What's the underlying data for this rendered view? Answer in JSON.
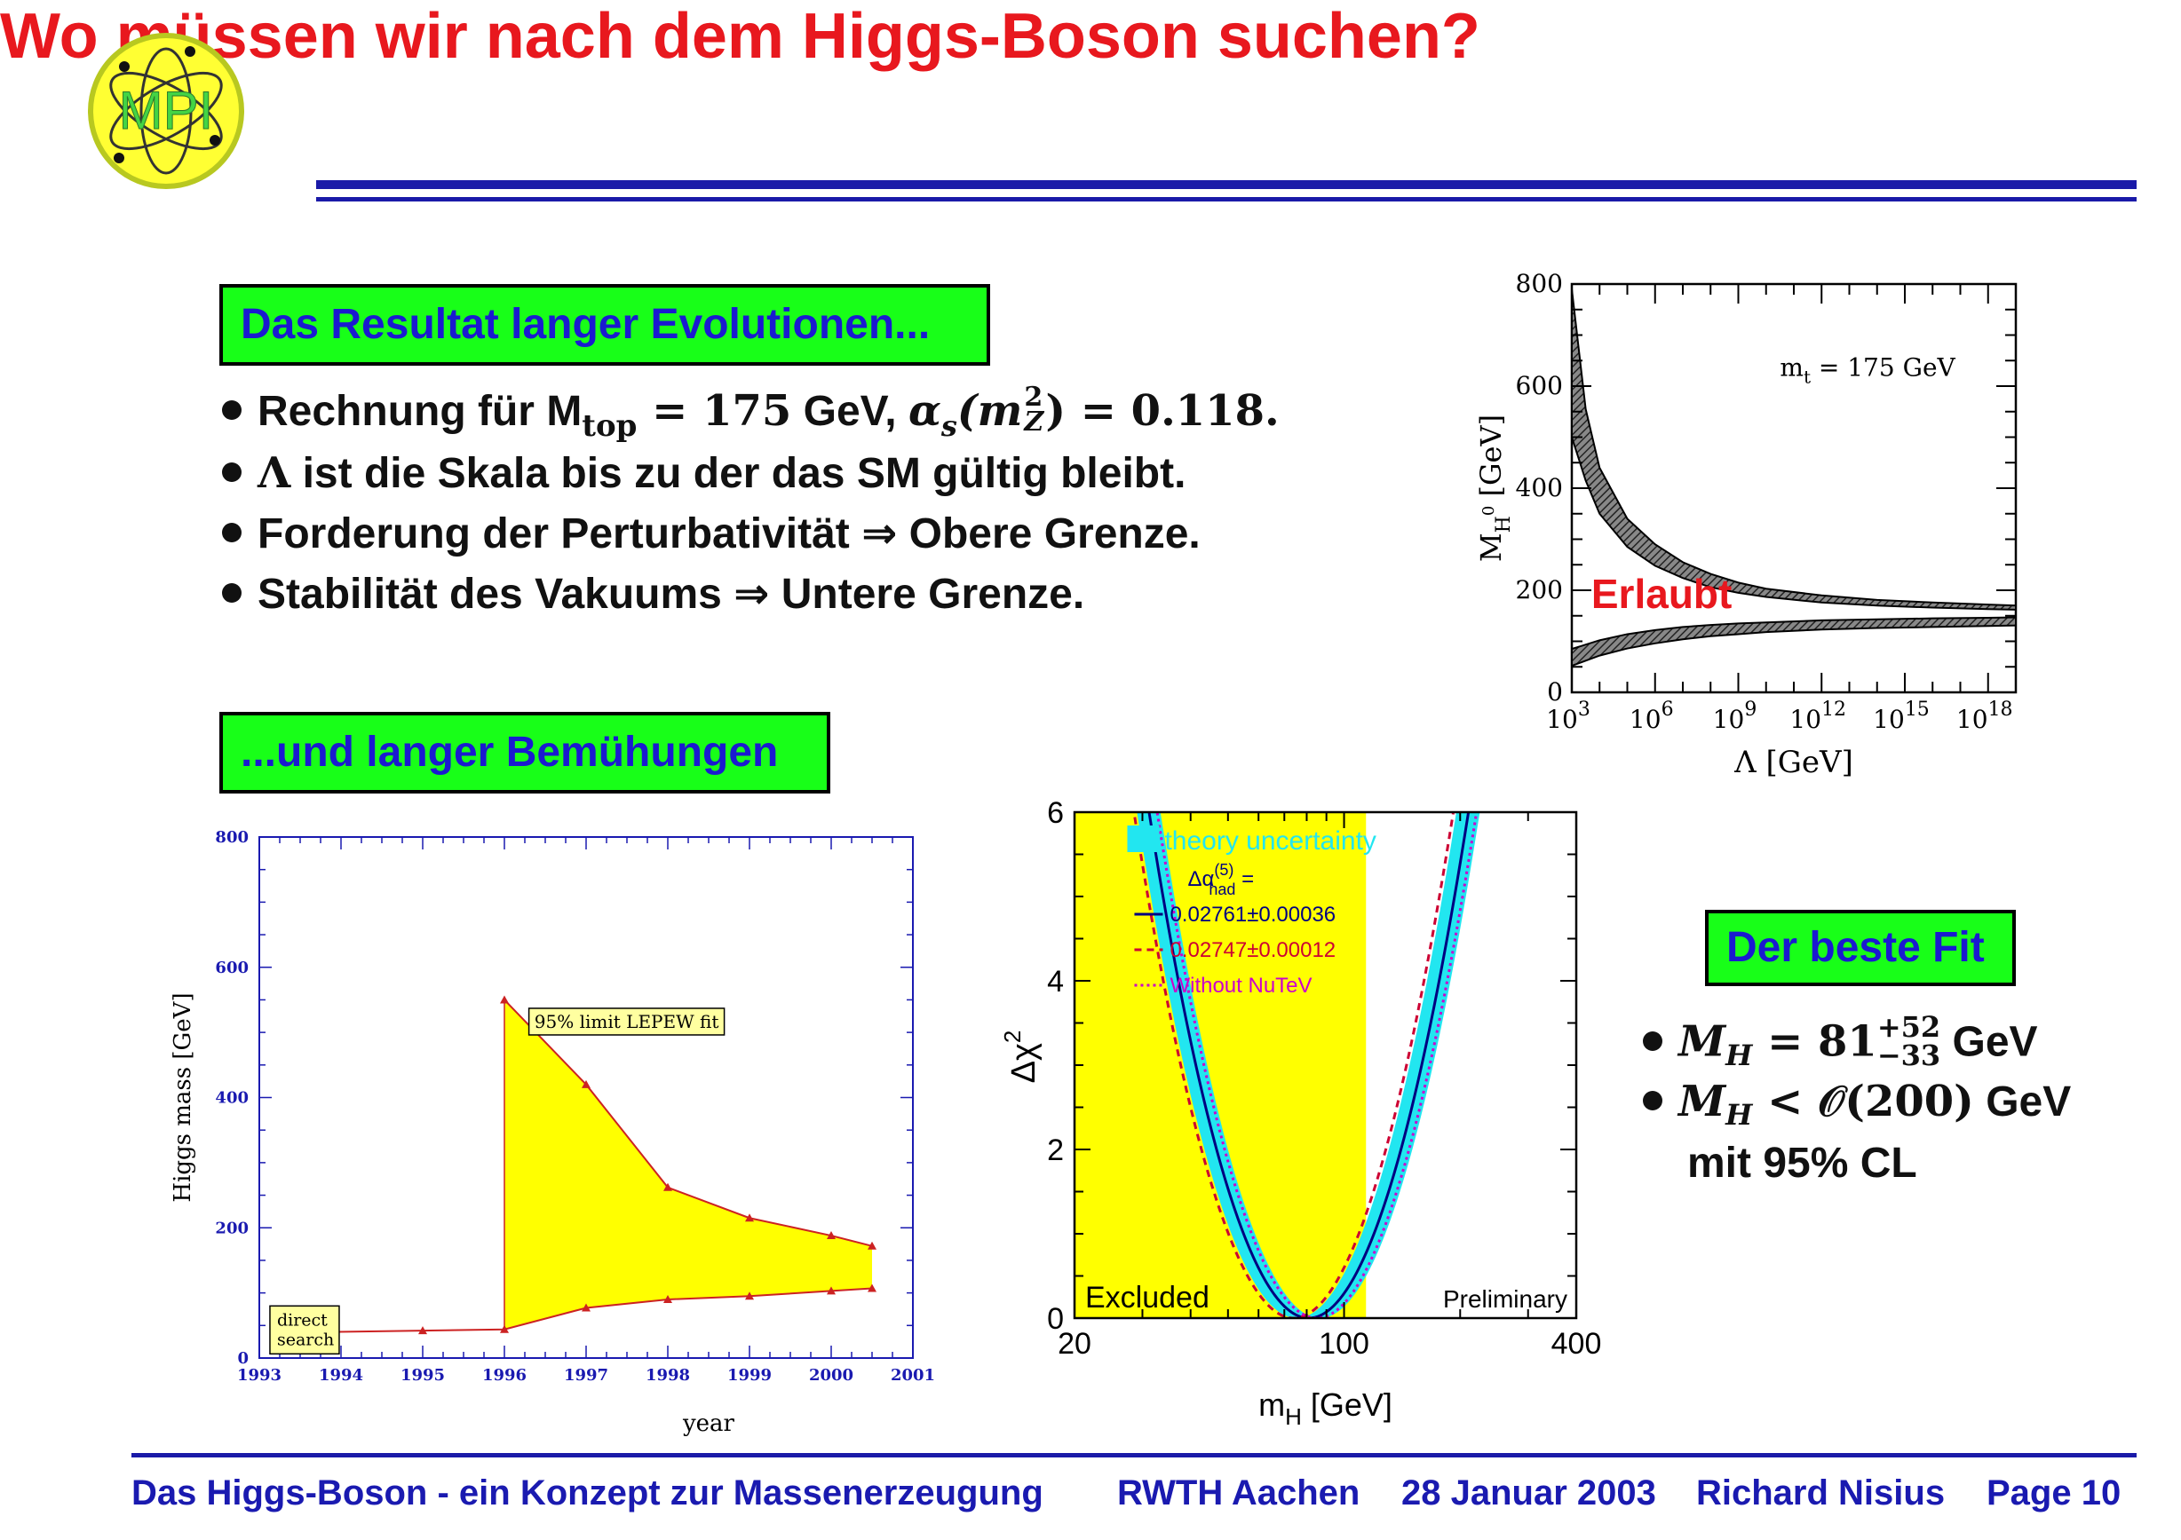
{
  "slide": {
    "title": "Wo müssen wir nach dem Higgs-Boson suchen?",
    "logo_text": "MPI",
    "colors": {
      "title": "#e8181e",
      "rule": "#1a1aa8",
      "box_bg": "#18ff18",
      "box_text": "#1a1ad0"
    }
  },
  "section1": {
    "heading": "Das Resultat langer Evolutionen...",
    "bullets": [
      {
        "text_a": "Rechnung für M",
        "sub_a": "top",
        "text_b": " = 175",
        "text_c": " GeV, ",
        "text_d": "α",
        "sub_d": "s",
        "text_e": "(m",
        "sup_e": "2",
        "sub_e": "Z",
        "text_f": ") = 0.118."
      },
      {
        "sym": "Λ",
        "text": " ist die Skala bis zu der das SM gültig bleibt."
      },
      {
        "text": "Forderung der Perturbativität ⇒ Obere Grenze."
      },
      {
        "text": "Stabilität des Vakuums ⇒ Untere Grenze."
      }
    ]
  },
  "section2": {
    "heading": "...und langer Bemühungen"
  },
  "section3": {
    "heading": "Der beste Fit",
    "b1_sym": "M",
    "b1_sub": "H",
    "b1_eq": " = 81",
    "b1_sup": "+52",
    "b1_subb": "−33",
    "b1_unit": " GeV",
    "b2_sym": "M",
    "b2_sub": "H",
    "b2_eq": " < 𝒪(200)",
    "b2_unit": " GeV",
    "b3": "mit 95% CL"
  },
  "chart_data": [
    {
      "type": "area",
      "id": "lambda-bounds",
      "xlabel": "Λ [GeV]",
      "ylabel_main": "M",
      "ylabel_sub": "H",
      "ylabel_sup": "0",
      "ylabel_unit": " [GeV]",
      "x_log10_range": [
        3,
        19
      ],
      "ylim": [
        0,
        800
      ],
      "yticks": [
        "0",
        "200",
        "400",
        "600",
        "800"
      ],
      "xticks": [
        {
          "base": "10",
          "exp": "3",
          "e": 3
        },
        {
          "base": "10",
          "exp": "6",
          "e": 6
        },
        {
          "base": "10",
          "exp": "9",
          "e": 9
        },
        {
          "base": "10",
          "exp": "12",
          "e": 12
        },
        {
          "base": "10",
          "exp": "15",
          "e": 15
        },
        {
          "base": "10",
          "exp": "18",
          "e": 18
        }
      ],
      "annotation": "m",
      "annotation_sub": "t",
      "annotation_rest": " = 175 GeV",
      "region_label": "Erlaubt",
      "upper_band": {
        "log10_lambda": [
          3,
          3.5,
          4,
          5,
          6,
          7,
          8,
          9,
          10,
          12,
          14,
          16,
          18,
          19
        ],
        "high": [
          790,
          555,
          440,
          340,
          290,
          255,
          232,
          215,
          203,
          190,
          181,
          176,
          172,
          170
        ],
        "low": [
          500,
          415,
          350,
          285,
          248,
          224,
          206,
          195,
          187,
          176,
          170,
          166,
          163,
          162
        ]
      },
      "lower_band": {
        "log10_lambda": [
          3,
          4,
          5,
          6,
          7,
          8,
          9,
          10,
          12,
          14,
          16,
          18,
          19
        ],
        "high": [
          85,
          102,
          114,
          122,
          128,
          132,
          135,
          137,
          141,
          143,
          145,
          146,
          147
        ],
        "low": [
          52,
          72,
          86,
          96,
          104,
          110,
          114,
          118,
          123,
          126,
          128,
          130,
          131
        ]
      }
    },
    {
      "type": "area",
      "id": "higgs-limit-history",
      "xlabel": "year",
      "ylabel": "Higgs mass [GeV]",
      "xlim": [
        1993,
        2001
      ],
      "ylim": [
        0,
        800
      ],
      "xticks": [
        1993,
        1994,
        1995,
        1996,
        1997,
        1998,
        1999,
        2000,
        2001
      ],
      "yticks": [
        0,
        200,
        400,
        600,
        800
      ],
      "lower_series": {
        "x": [
          1993.9,
          1995,
          1996,
          1997,
          1998,
          1999,
          2000,
          2000.5
        ],
        "y": [
          40,
          42,
          44,
          77,
          90,
          95,
          103,
          107
        ]
      },
      "upper_series": {
        "x": [
          1996,
          1997,
          1998,
          1999,
          2000,
          2000.5
        ],
        "y": [
          550,
          420,
          262,
          215,
          188,
          172
        ]
      },
      "label_upper": "95% limit LEPEW fit",
      "label_lower_1": "direct",
      "label_lower_2": "search",
      "fill_color": "#ffff00",
      "line_color": "#cc2222"
    },
    {
      "type": "line",
      "id": "delta-chi2",
      "xlabel_main": "m",
      "xlabel_sub": "H",
      "xlabel_unit": " [GeV]",
      "ylabel_main": "Δχ",
      "ylabel_sup": "2",
      "xlim_log": [
        20,
        400
      ],
      "ylim": [
        0,
        6
      ],
      "xticks": [
        20,
        100,
        400
      ],
      "yticks": [
        0,
        2,
        4,
        6
      ],
      "excluded_upper_mass": 114,
      "excluded_label": "Excluded",
      "preliminary_label": "Preliminary",
      "legend": {
        "band": "theory uncertainty",
        "alpha_line1": "Δα",
        "alpha_sup": "(5)",
        "alpha_sub": "had",
        "alpha_eq": " =",
        "s1": "0.02761±0.00036",
        "s2": "0.02747±0.00012",
        "s3": "Without NuTeV"
      },
      "series": [
        {
          "name": "0.02761±0.00036",
          "min_at": 81,
          "color": "#000080",
          "style": "solid"
        },
        {
          "name": "0.02747±0.00012",
          "min_at": 74,
          "color": "#cc0033",
          "style": "dashed"
        },
        {
          "name": "Without NuTeV",
          "min_at": 85,
          "color": "#cc00cc",
          "style": "dotted"
        }
      ],
      "band_color": "#22e6f0",
      "excluded_color": "#ffff00"
    }
  ],
  "footer": {
    "talk": "Das Higgs-Boson - ein Konzept zur Massenerzeugung",
    "place": "RWTH Aachen",
    "date": "28 Januar 2003",
    "author": "Richard Nisius",
    "page": "Page 10"
  }
}
